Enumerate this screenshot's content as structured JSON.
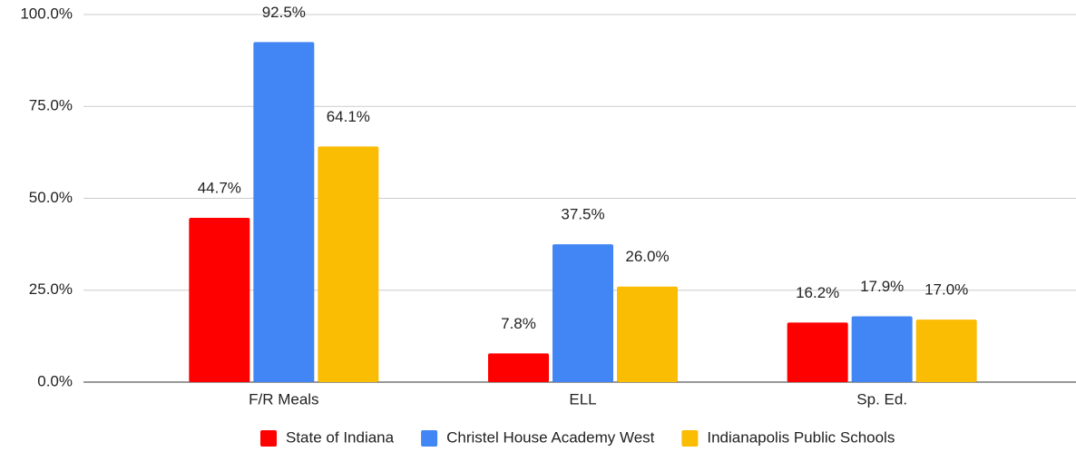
{
  "chart_data": {
    "type": "bar",
    "categories": [
      "F/R Meals",
      "ELL",
      "Sp. Ed."
    ],
    "series": [
      {
        "name": "State of Indiana",
        "color": "#ff0000",
        "values": [
          44.7,
          7.8,
          16.2
        ],
        "value_labels": [
          "44.7%",
          "7.8%",
          "16.2%"
        ]
      },
      {
        "name": "Christel House Academy West",
        "color": "#4285f4",
        "values": [
          92.5,
          37.5,
          17.9
        ],
        "value_labels": [
          "92.5%",
          "37.5%",
          "17.9%"
        ]
      },
      {
        "name": "Indianapolis Public Schools",
        "color": "#fbbc04",
        "values": [
          64.1,
          26.0,
          17.0
        ],
        "value_labels": [
          "64.1%",
          "26.0%",
          "17.0%"
        ]
      }
    ],
    "ylim": [
      0,
      100
    ],
    "yticks": [
      {
        "value": 0,
        "label": "0.0%"
      },
      {
        "value": 25,
        "label": "25.0%"
      },
      {
        "value": 50,
        "label": "50.0%"
      },
      {
        "value": 75,
        "label": "75.0%"
      },
      {
        "value": 100,
        "label": "100.0%"
      }
    ],
    "grid": true,
    "legend": "bottom"
  }
}
